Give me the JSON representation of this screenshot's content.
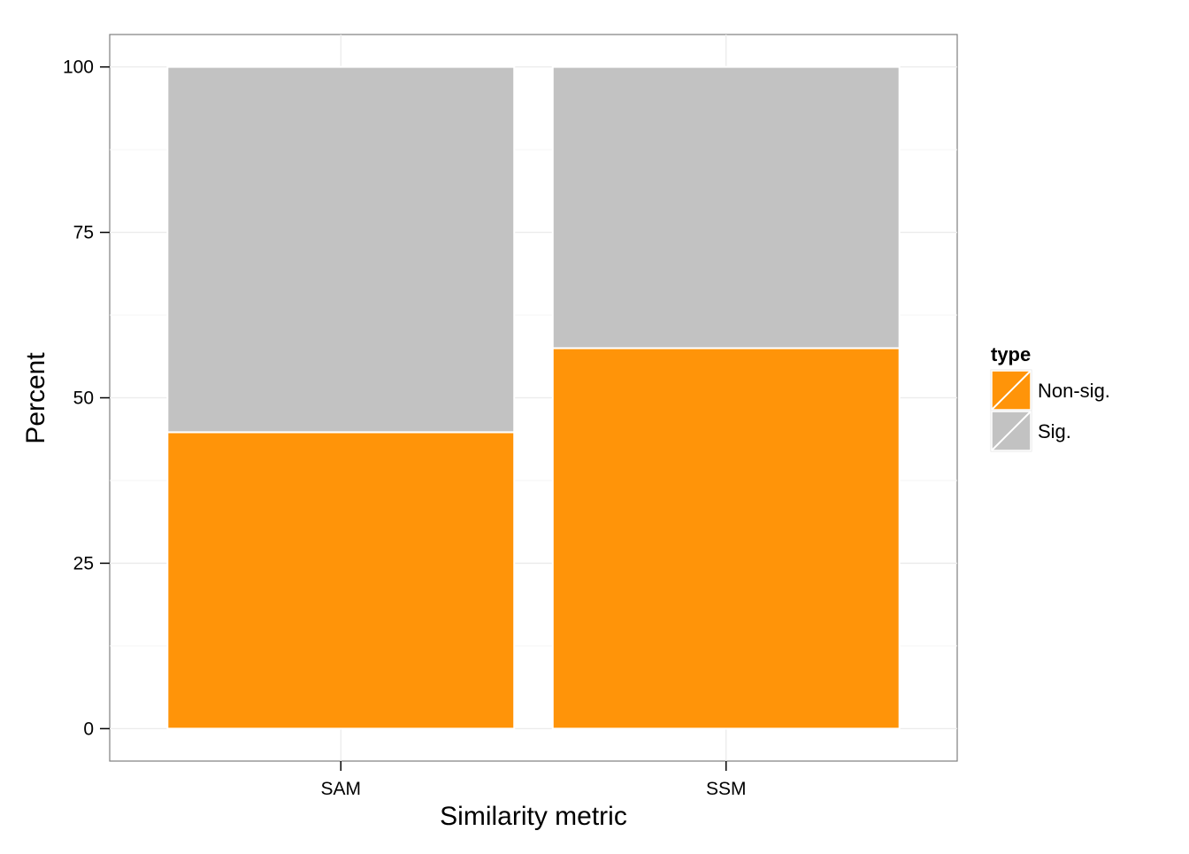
{
  "chart_data": {
    "type": "bar",
    "stacked": true,
    "categories": [
      "SAM",
      "SSM"
    ],
    "series": [
      {
        "name": "Non-sig.",
        "values": [
          44.8,
          57.5
        ],
        "color": "#FF9409"
      },
      {
        "name": "Sig.",
        "values": [
          55.2,
          42.5
        ],
        "color": "#C2C2C2"
      }
    ],
    "xlabel": "Similarity metric",
    "ylabel": "Percent",
    "ylim": [
      -4.9,
      104.9
    ],
    "yticks": [
      0,
      25,
      50,
      75,
      100
    ],
    "grid": true,
    "legend": {
      "title": "type",
      "position": "right"
    }
  }
}
